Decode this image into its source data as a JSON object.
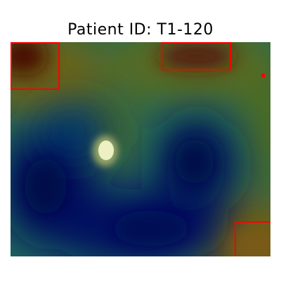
{
  "figure": {
    "title": "Patient ID: T1-120"
  },
  "heatmap": {
    "colors": {
      "low": "#000a55",
      "mid": "#1c6f5c",
      "high_warm": "#6d5a10",
      "hot": "#5a0606",
      "bright_spot": "#f0f3c8",
      "box": "#ff0000"
    },
    "boxes_count": 3,
    "markers_count": 1
  }
}
